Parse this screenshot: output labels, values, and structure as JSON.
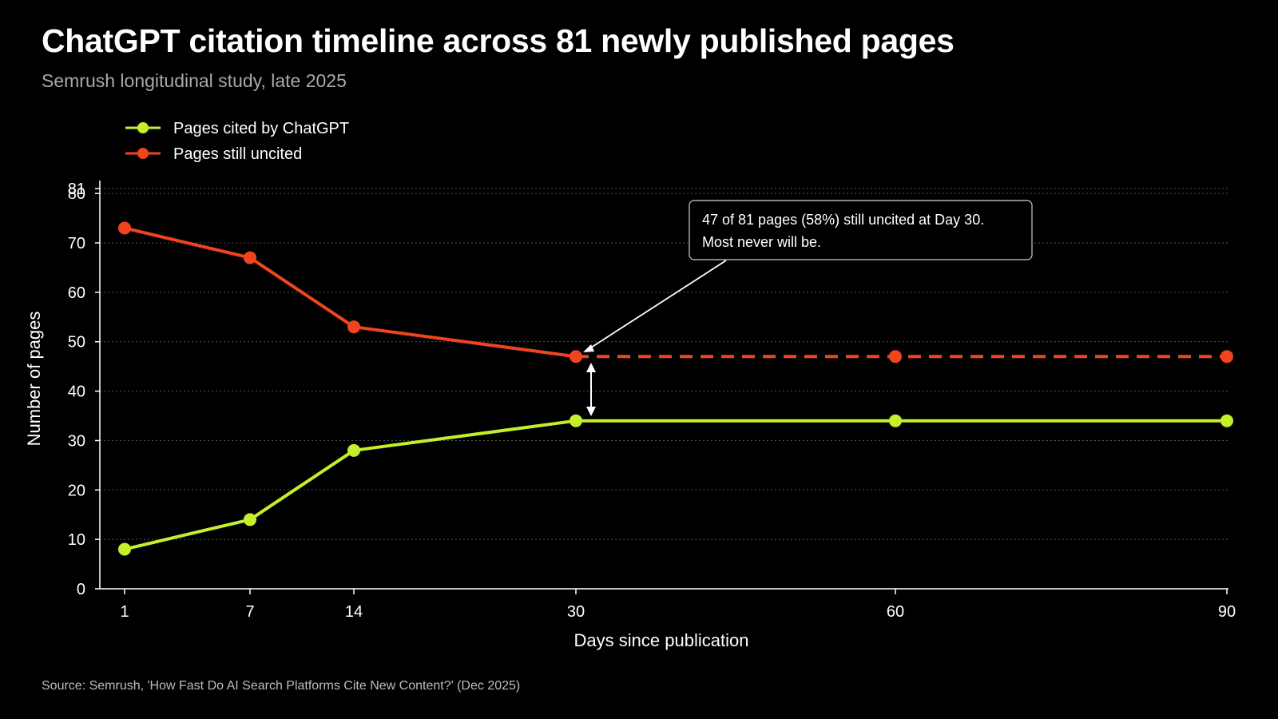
{
  "title": "ChatGPT citation timeline across 81 newly published pages",
  "subtitle": "Semrush longitudinal study, late 2025",
  "source": "Source: Semrush, 'How Fast Do AI Search Platforms Cite New Content?' (Dec 2025)",
  "annotation": {
    "line1": "47 of 81 pages (58%) still uncited at Day 30.",
    "line2": "Most never will be."
  },
  "colors": {
    "background": "#000000",
    "cited": "#c4f02b",
    "uncited": "#f0441f",
    "grid": "#555555",
    "axis": "#ffffff"
  },
  "chart_data": {
    "type": "line",
    "xlabel": "Days since publication",
    "ylabel": "Number of pages",
    "ylim": [
      0,
      81
    ],
    "y_ticks": [
      0,
      10,
      20,
      30,
      40,
      50,
      60,
      70,
      80,
      81
    ],
    "x_ticks": [
      1,
      7,
      14,
      30,
      60,
      90
    ],
    "x_scale": "categorical",
    "grid": true,
    "legend_position": "top-left",
    "series": [
      {
        "name": "Pages cited by ChatGPT",
        "color": "#c4f02b",
        "x": [
          1,
          7,
          14,
          30,
          60,
          90
        ],
        "y": [
          8,
          14,
          28,
          34,
          34,
          34
        ],
        "dashed_after_x": null
      },
      {
        "name": "Pages still uncited",
        "color": "#f0441f",
        "x": [
          1,
          7,
          14,
          30,
          60,
          90
        ],
        "y": [
          73,
          67,
          53,
          47,
          47,
          47
        ],
        "dashed_after_x": 30
      }
    ]
  }
}
